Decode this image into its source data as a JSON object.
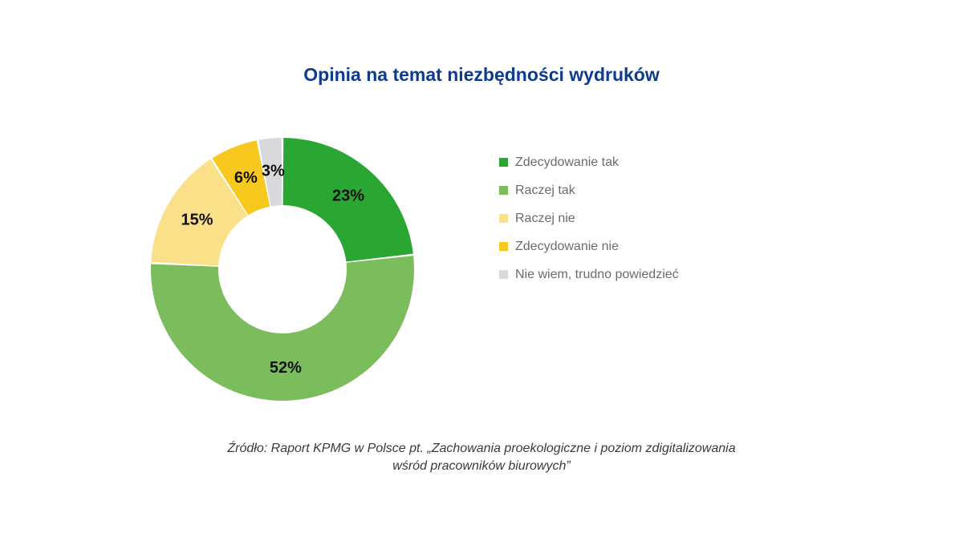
{
  "chart_data": {
    "type": "pie",
    "title": "Opinia na temat niezbędności wydruków",
    "series": [
      {
        "label": "Zdecydowanie tak",
        "value": 23,
        "value_label": "23%",
        "color": "#2aa632"
      },
      {
        "label": "Raczej tak",
        "value": 52,
        "value_label": "52%",
        "color": "#7bbd5c"
      },
      {
        "label": "Raczej nie",
        "value": 15,
        "value_label": "15%",
        "color": "#fbe08a"
      },
      {
        "label": "Zdecydowanie nie",
        "value": 6,
        "value_label": "6%",
        "color": "#f7c81e"
      },
      {
        "label": "Nie wiem, trudno powiedzieć",
        "value": 3,
        "value_label": "3%",
        "color": "#d9d9dc"
      }
    ],
    "legend_position": "right",
    "donut": true
  },
  "source": {
    "line1": "Źródło: Raport KPMG w Polsce pt. „Zachowania proekologiczne i poziom zdigitalizowania",
    "line2": "wśród pracowników biurowych”"
  }
}
